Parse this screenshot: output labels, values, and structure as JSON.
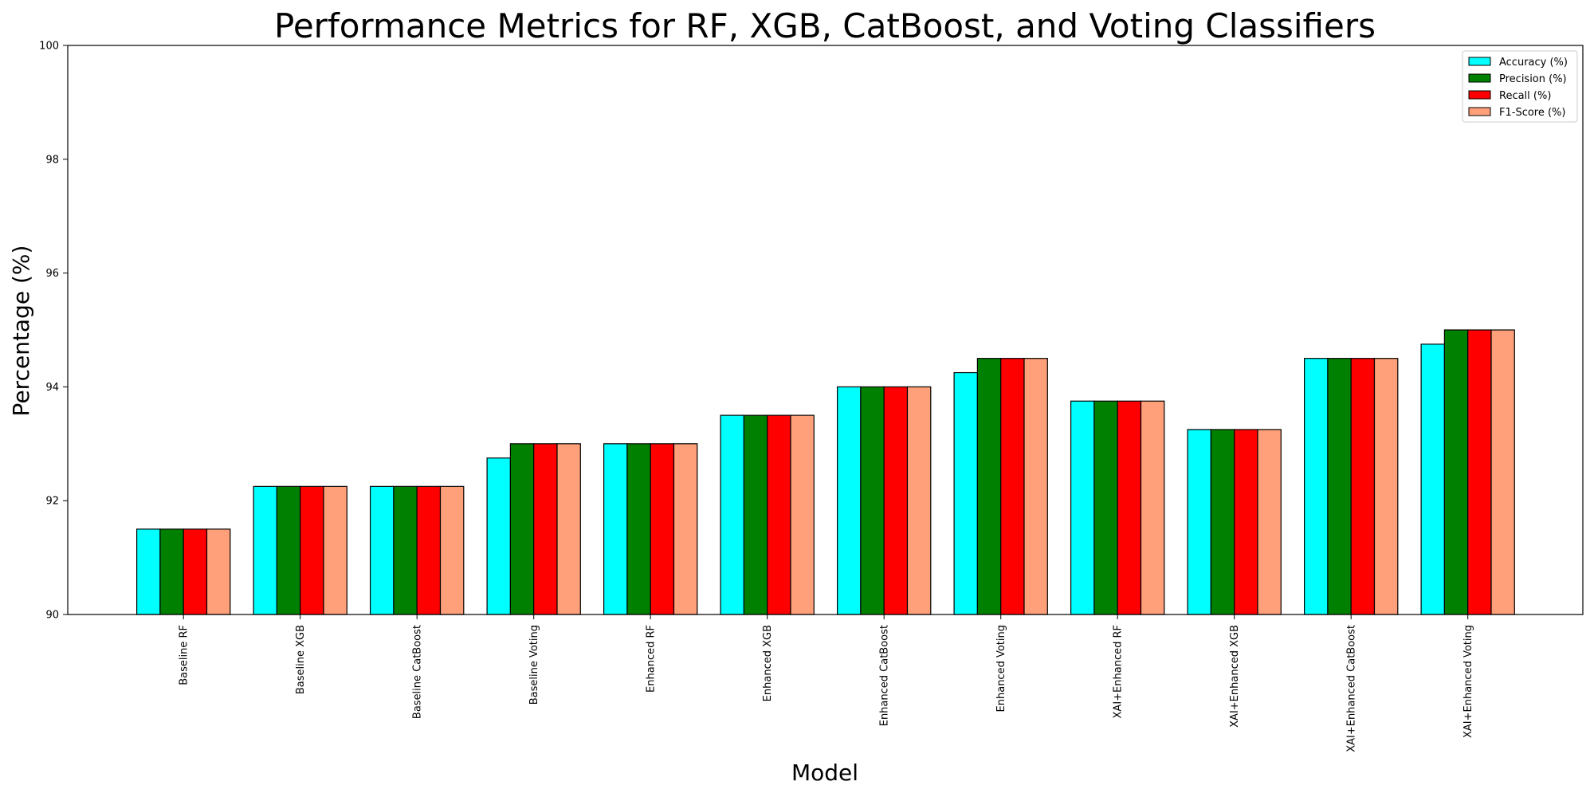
{
  "chart_data": {
    "type": "bar",
    "title": "Performance Metrics for RF, XGB, CatBoost, and Voting Classifiers",
    "xlabel": "Model",
    "ylabel": "Percentage (%)",
    "ylim": [
      90,
      100
    ],
    "yticks": [
      90,
      92,
      94,
      96,
      98,
      100
    ],
    "grid": false,
    "legend_position": "top-right",
    "categories": [
      "Baseline RF",
      "Baseline XGB",
      "Baseline CatBoost",
      "Baseline Voting",
      "Enhanced RF",
      "Enhanced XGB",
      "Enhanced CatBoost",
      "Enhanced Voting",
      "XAI+Enhanced RF",
      "XAI+Enhanced XGB",
      "XAI+Enhanced CatBoost",
      "XAI+Enhanced Voting"
    ],
    "series": [
      {
        "name": "Accuracy (%)",
        "color": "#00ffff",
        "values": [
          91.5,
          92.25,
          92.25,
          92.75,
          93.0,
          93.5,
          94.0,
          94.25,
          93.75,
          93.25,
          94.5,
          94.75
        ]
      },
      {
        "name": "Precision (%)",
        "color": "#008000",
        "values": [
          91.5,
          92.25,
          92.25,
          93.0,
          93.0,
          93.5,
          94.0,
          94.5,
          93.75,
          93.25,
          94.5,
          95.0
        ]
      },
      {
        "name": "Recall (%)",
        "color": "#ff0000",
        "values": [
          91.5,
          92.25,
          92.25,
          93.0,
          93.0,
          93.5,
          94.0,
          94.5,
          93.75,
          93.25,
          94.5,
          95.0
        ]
      },
      {
        "name": "F1-Score (%)",
        "color": "#ffa07a",
        "values": [
          91.5,
          92.25,
          92.25,
          93.0,
          93.0,
          93.5,
          94.0,
          94.5,
          93.75,
          93.25,
          94.5,
          95.0
        ]
      }
    ]
  }
}
